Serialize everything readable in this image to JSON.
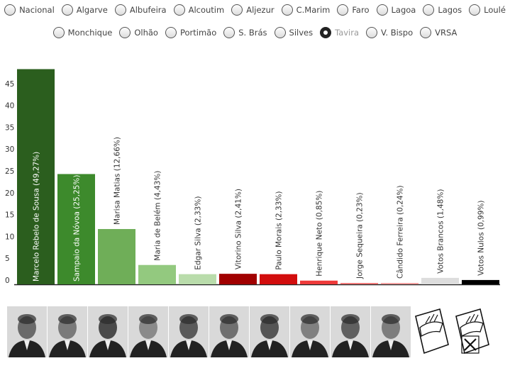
{
  "filters": {
    "row1": [
      "Nacional",
      "Algarve",
      "Albufeira",
      "Alcoutim",
      "Aljezur",
      "C.Marim",
      "Faro",
      "Lagoa",
      "Lagos",
      "Loulé"
    ],
    "row2": [
      "Monchique",
      "Olhão",
      "Portimão",
      "S. Brás",
      "Silves",
      "Tavira",
      "V. Bispo",
      "VRSA"
    ],
    "selected": "Tavira"
  },
  "chart_data": {
    "type": "bar",
    "yticks": [
      0,
      5,
      10,
      15,
      20,
      25,
      30,
      35,
      40,
      45
    ],
    "ylim": [
      0,
      50
    ],
    "series": [
      {
        "label": "Marcelo Rebelo de Sousa (49,27%)",
        "value": 49.27,
        "color": "#2b5e1e"
      },
      {
        "label": "Sampaio da Nóvoa (25,25%)",
        "value": 25.25,
        "color": "#3d8a2c"
      },
      {
        "label": "Marisa Matias (12,66%)",
        "value": 12.66,
        "color": "#6fae58"
      },
      {
        "label": "Maria de Belém (4,43%)",
        "value": 4.43,
        "color": "#93c97f"
      },
      {
        "label": "Edgar Silva (2,33%)",
        "value": 2.33,
        "color": "#b9dcab"
      },
      {
        "label": "Vitorino Silva (2,41%)",
        "value": 2.41,
        "color": "#a10000"
      },
      {
        "label": "Paulo Morais (2,33%)",
        "value": 2.33,
        "color": "#d20d0d"
      },
      {
        "label": "Henrique Neto (0,85%)",
        "value": 0.85,
        "color": "#ee3a3a"
      },
      {
        "label": "Jorge Sequeira (0,23%)",
        "value": 0.23,
        "color": "#f07a7a"
      },
      {
        "label": "Cândido Ferreira (0,24%)",
        "value": 0.24,
        "color": "#f2a0a0"
      },
      {
        "label": "Votos Brancos (1,48%)",
        "value": 1.48,
        "color": "#dddddd"
      },
      {
        "label": "Votos Nulos (0,99%)",
        "value": 0.99,
        "color": "#000000"
      }
    ]
  },
  "photos": [
    "face-1",
    "face-2",
    "face-3",
    "face-4",
    "face-5",
    "face-6",
    "face-7",
    "face-8",
    "face-9",
    "face-10",
    "blank-ballot",
    "null-ballot"
  ]
}
